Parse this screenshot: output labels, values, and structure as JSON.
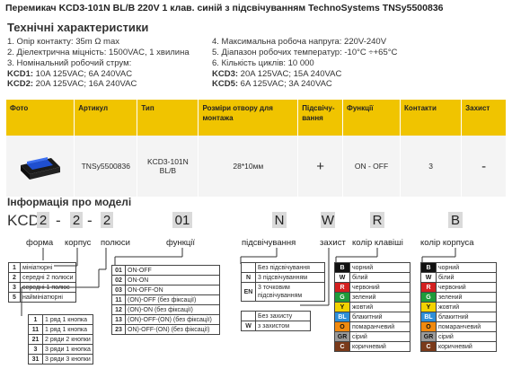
{
  "title": "Перемикач KCD3-101N BL/B 220V 1 клав. синій з підсвічуванням TechnoSystems TNSy5500836",
  "spec_heading": "Технічні характеристики",
  "spec_left": [
    "1. Опір контакту: 35m Ω  max",
    "2. Діелектрична міцність:  1500VAC, 1 хвилина",
    "3. Номінальний робочий струм:"
  ],
  "spec_left_kcd1": {
    "k": "KCD1:",
    "v": " 10A 125VAC; 6A 240VAC"
  },
  "spec_left_kcd2": {
    "k": "KCD2:",
    "v": " 20A 125VAC; 16A 240VAC"
  },
  "spec_right": [
    "4. Максимальна робоча напруга: 220V-240V",
    "5. Діапазон робочих температур: -10°C ÷+65°C",
    "6. Кількість циклів: 10 000"
  ],
  "spec_right_kcd3": {
    "k": "KCD3:",
    "v": " 20A 125VAC; 15A 240VAC"
  },
  "spec_right_kcd5": {
    "k": "KCD5:",
    "v": " 6A 125VAC; 3A 240VAC"
  },
  "table": {
    "headers": [
      "Фото",
      "Артикул",
      "Тип",
      "Розміри отвору для монтажа",
      "Підсвічу-вання",
      "Функції",
      "Контакти",
      "Захист"
    ],
    "row": [
      "",
      "TNSy5500836",
      "KCD3-101N BL/B",
      "28*10мм",
      "+",
      "ON - OFF",
      "3",
      "-"
    ]
  },
  "info_heading": "Інформація про моделі",
  "code": {
    "prefix": "KCD",
    "parts": [
      "2",
      "2",
      "2",
      "01",
      "N",
      "W",
      "R",
      "B"
    ],
    "dash": "-"
  },
  "labels": [
    "форма",
    "корпус",
    "полюси",
    "функції",
    "підсвічування",
    "захист",
    "колір клавіші",
    "колір корпуса"
  ],
  "form_table": [
    {
      "k": "1",
      "v": "мініатюрні"
    },
    {
      "k": "2",
      "v": "середні 2 полюси"
    },
    {
      "k": "3",
      "v": "середні 1 полюс"
    },
    {
      "k": "5",
      "v": "наймініатюрні"
    }
  ],
  "poles_table": [
    {
      "k": "1",
      "v": "1 ряд 1 кнопка"
    },
    {
      "k": "11",
      "v": "1 ряд 1 кнопка"
    },
    {
      "k": "21",
      "v": "2 ряди 2 кнопки"
    },
    {
      "k": "3",
      "v": "3 ряди 1 кнопка"
    },
    {
      "k": "31",
      "v": "3 ряди 3 кнопки"
    }
  ],
  "func_table": [
    {
      "k": "01",
      "v": "ON-OFF"
    },
    {
      "k": "02",
      "v": "ON-ON"
    },
    {
      "k": "03",
      "v": "ON-OFF-ON"
    },
    {
      "k": "11",
      "v": "(ON)-OFF (без фіксації)"
    },
    {
      "k": "12",
      "v": "(ON)-ON (без фіксації)"
    },
    {
      "k": "13",
      "v": "(ON)-OFF-(ON) (без фіксації)"
    },
    {
      "k": "23",
      "v": "ON)-OFF-(ON) (без фіксації)"
    }
  ],
  "light_table": [
    {
      "k": "",
      "v": "Без підсвічування"
    },
    {
      "k": "N",
      "v": "3 підсвічуванням"
    },
    {
      "k": "EN",
      "v": "3 точковим підсвічуванням"
    }
  ],
  "protect_table": [
    {
      "k": "",
      "v": "Без захисту"
    },
    {
      "k": "W",
      "v": "з захистом"
    }
  ],
  "colors": [
    {
      "k": "B",
      "v": "чорний",
      "hex": "#111111"
    },
    {
      "k": "W",
      "v": "білий",
      "hex": "#ffffff"
    },
    {
      "k": "R",
      "v": "червоний",
      "hex": "#d42020"
    },
    {
      "k": "G",
      "v": "зелений",
      "hex": "#1f9b3a"
    },
    {
      "k": "Y",
      "v": "жовтий",
      "hex": "#f2d200"
    },
    {
      "k": "BL",
      "v": "блакитний",
      "hex": "#2f8fd8"
    },
    {
      "k": "O",
      "v": "помаранчевий",
      "hex": "#f08a10"
    },
    {
      "k": "GR",
      "v": "сірий",
      "hex": "#9a9a9a"
    },
    {
      "k": "C",
      "v": "коричневий",
      "hex": "#7a3a1a"
    }
  ],
  "accent": "#f0c400"
}
